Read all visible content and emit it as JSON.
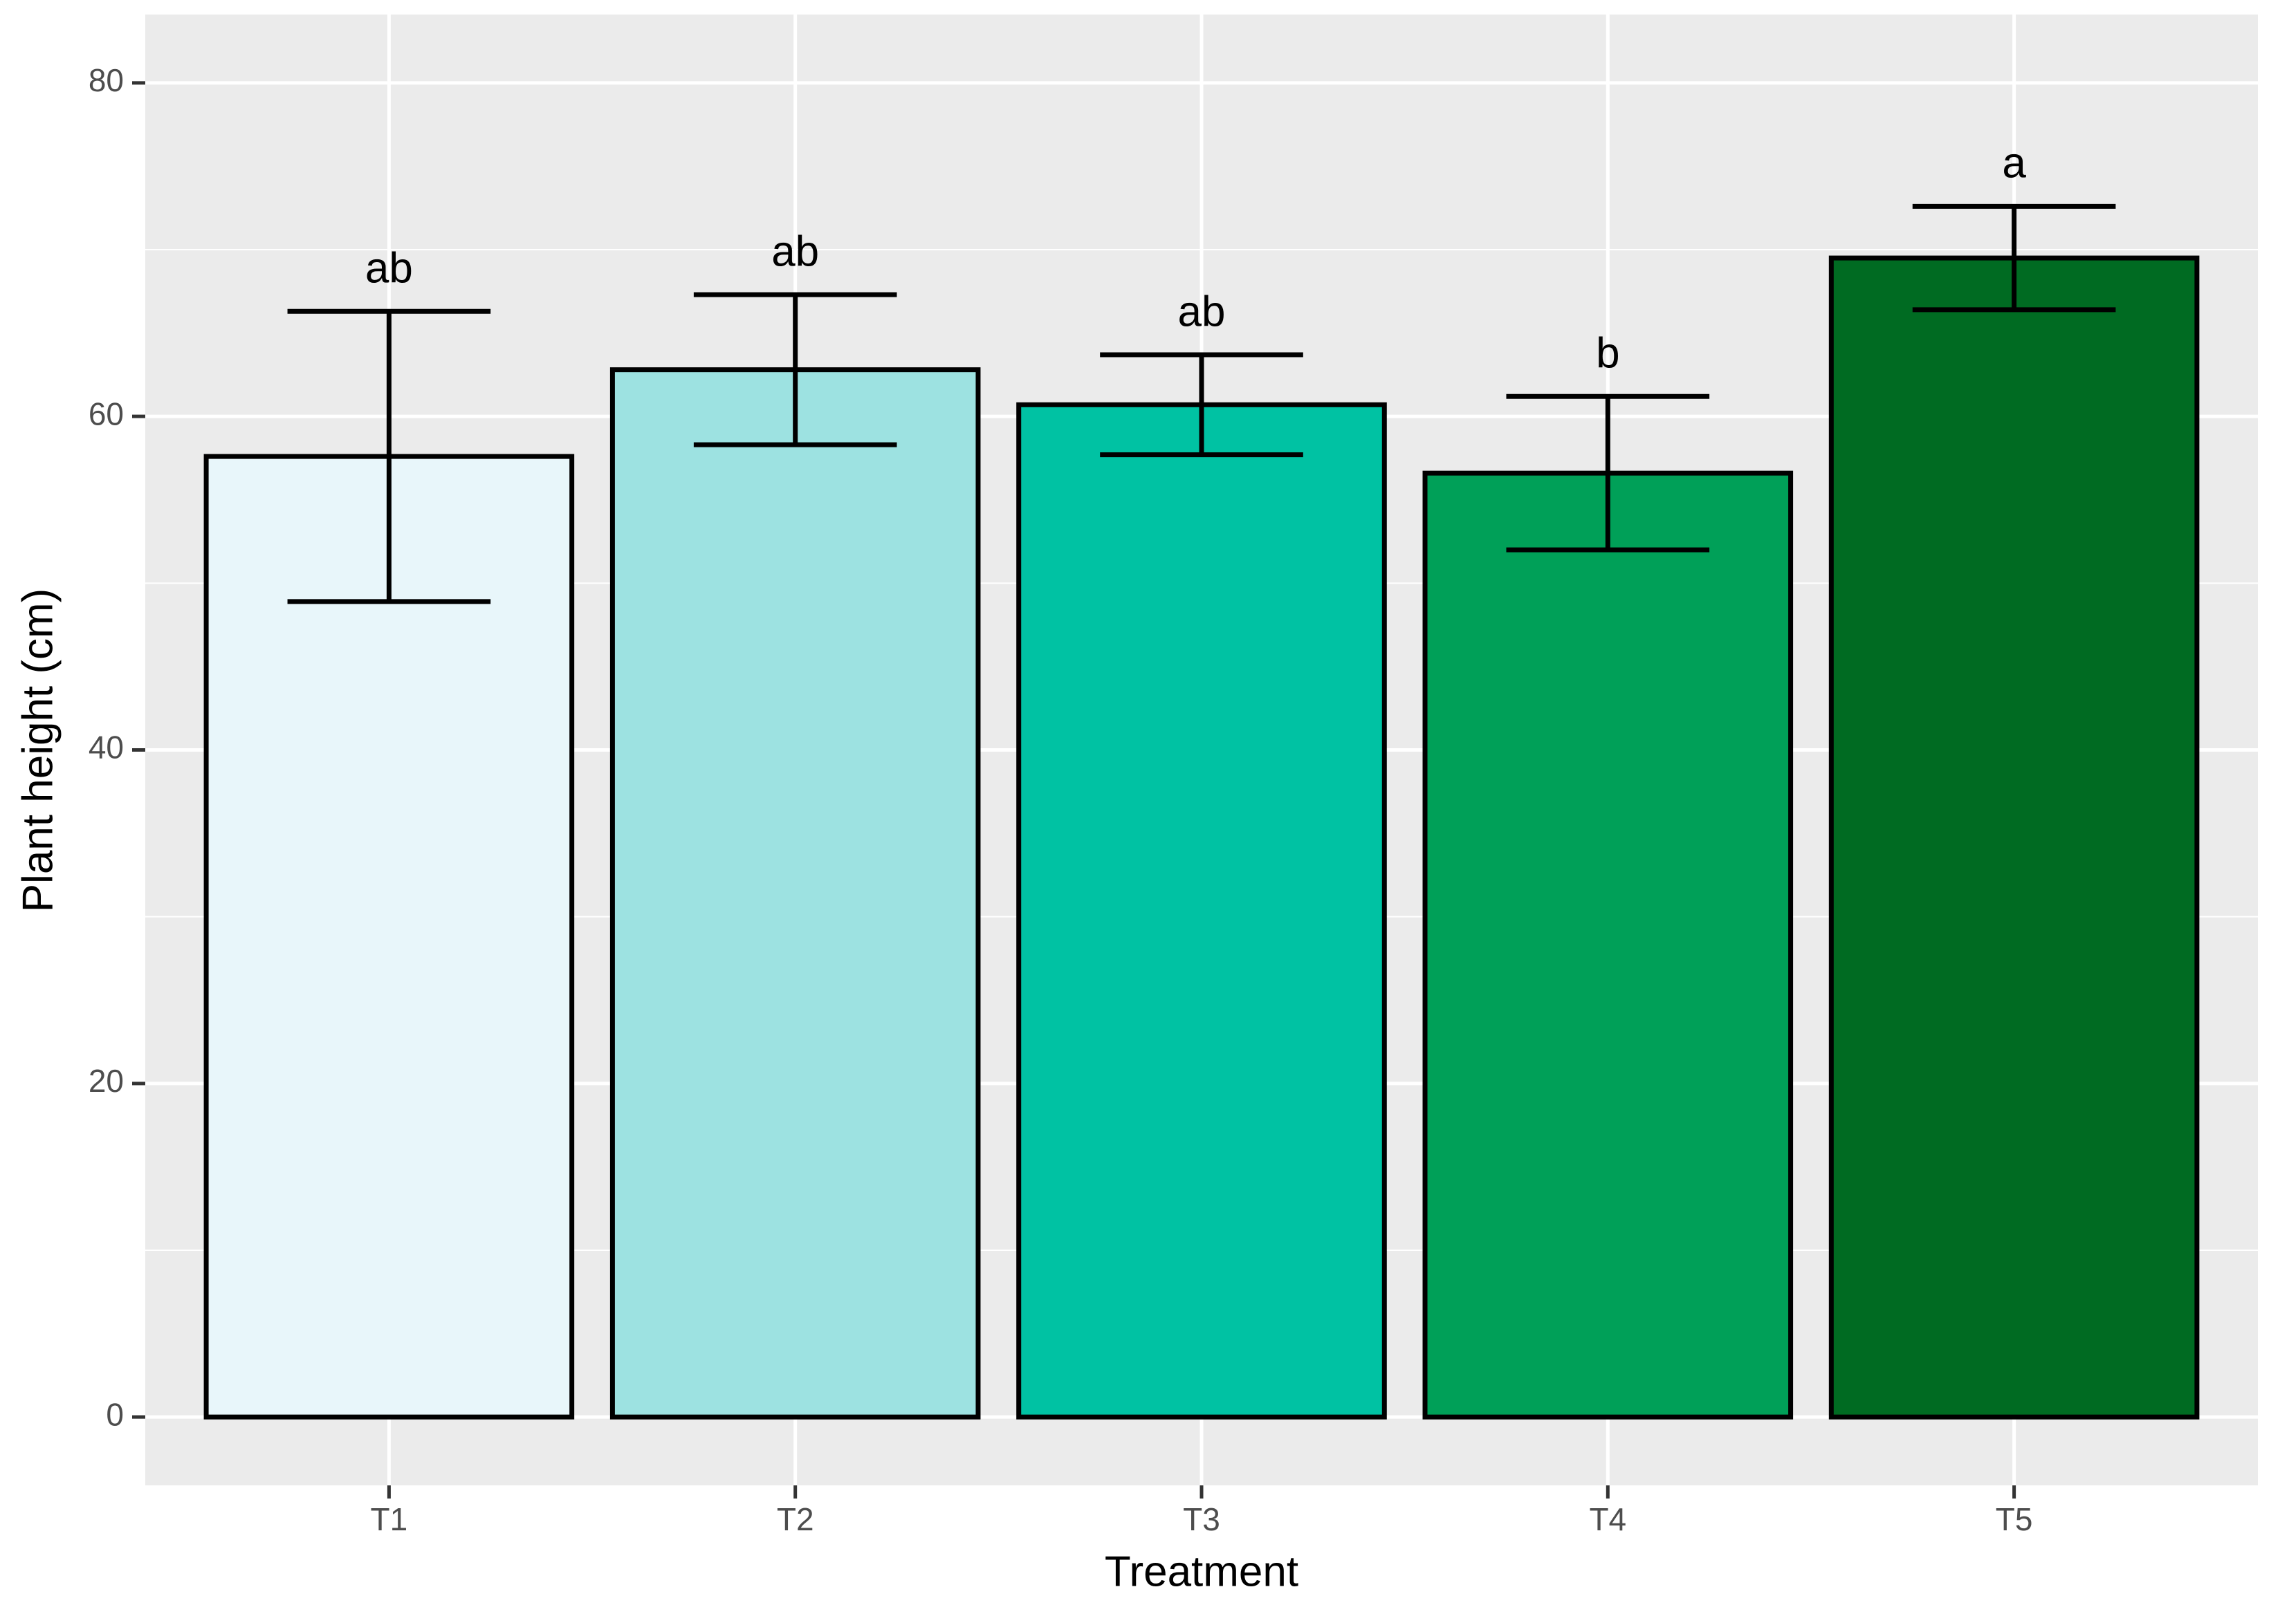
{
  "chart_data": {
    "type": "bar",
    "x_label": "Treatment",
    "y_label": "Plant height (cm)",
    "categories": [
      "T1",
      "T2",
      "T3",
      "T4",
      "T5"
    ],
    "values": [
      57.6,
      62.8,
      60.7,
      56.6,
      69.5
    ],
    "errors": [
      8.7,
      4.5,
      3.0,
      4.6,
      3.1
    ],
    "letters": [
      "ab",
      "ab",
      "ab",
      "b",
      "a"
    ],
    "colors": [
      "#e8f6fa",
      "#9de2e1",
      "#00c2a3",
      "#00a058",
      "#006b22"
    ],
    "ylim": [
      -4.1,
      84.1
    ],
    "yticks": [
      0,
      20,
      40,
      60,
      80
    ],
    "minor_yticks": [
      10,
      30,
      50,
      70
    ],
    "grid": true
  }
}
